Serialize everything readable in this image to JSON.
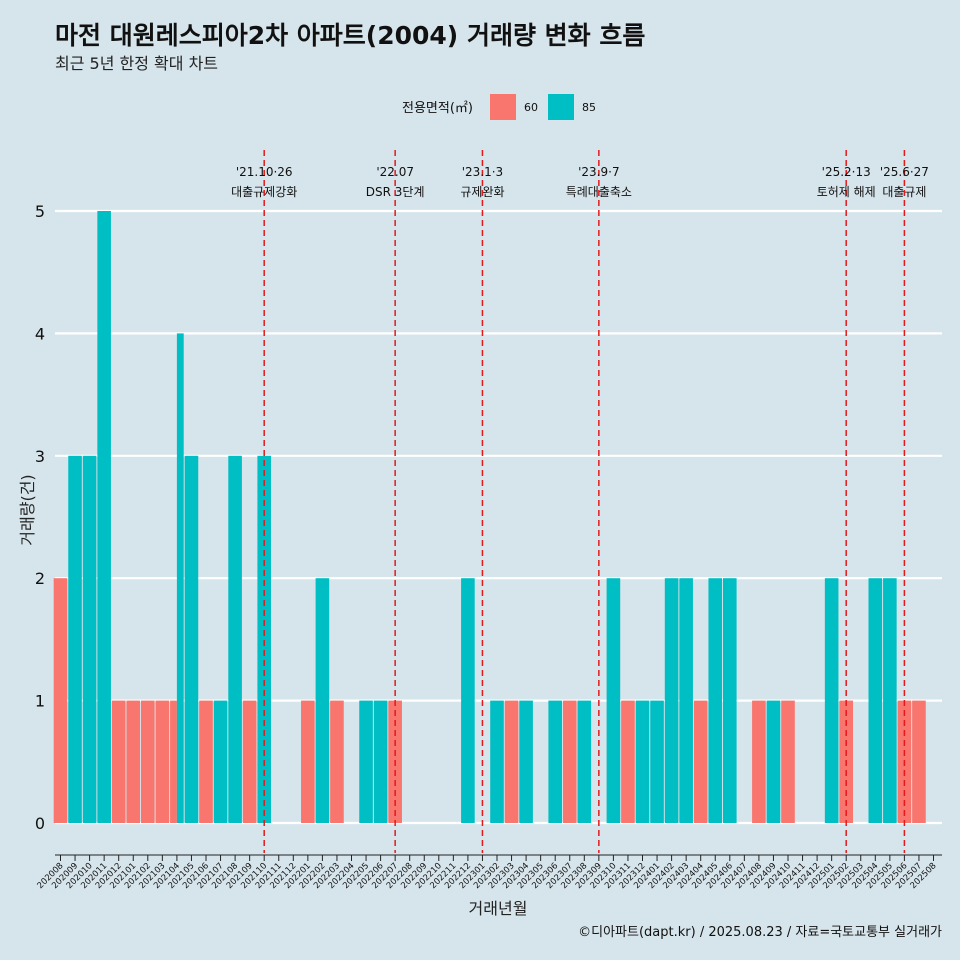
{
  "header": {
    "title": "마전 대원레스피아2차 아파트(2004) 거래량 변화 흐름",
    "subtitle": "최근 5년 한정 확대 차트"
  },
  "legend": {
    "title": "전용면적(㎡)",
    "items": [
      {
        "label": "60",
        "color": "#f8766d"
      },
      {
        "label": "85",
        "color": "#00bfc4"
      }
    ]
  },
  "caption": "©디아파트(dapt.kr) / 2025.08.23 / 자료=국토교통부 실거래가",
  "chart_data": {
    "type": "bar",
    "xlabel": "거래년월",
    "ylabel": "거래량(건)",
    "ylim": [
      0,
      5
    ],
    "yticks": [
      0,
      1,
      2,
      3,
      4,
      5
    ],
    "grid": true,
    "legend_position": "top",
    "categories": [
      "202008",
      "202009",
      "202010",
      "202011",
      "202012",
      "202101",
      "202102",
      "202103",
      "202104",
      "202105",
      "202106",
      "202107",
      "202108",
      "202109",
      "202110",
      "202111",
      "202112",
      "202201",
      "202202",
      "202203",
      "202204",
      "202205",
      "202206",
      "202207",
      "202208",
      "202209",
      "202210",
      "202211",
      "202212",
      "202301",
      "202302",
      "202303",
      "202304",
      "202305",
      "202306",
      "202307",
      "202308",
      "202309",
      "202310",
      "202311",
      "202312",
      "202401",
      "202402",
      "202403",
      "202404",
      "202405",
      "202406",
      "202407",
      "202408",
      "202409",
      "202410",
      "202411",
      "202412",
      "202501",
      "202502",
      "202503",
      "202504",
      "202505",
      "202506",
      "202507",
      "202508"
    ],
    "series": [
      {
        "name": "60",
        "color": "#f8766d",
        "values": [
          2,
          0,
          0,
          0,
          1,
          1,
          1,
          1,
          1,
          0,
          1,
          0,
          0,
          1,
          0,
          0,
          0,
          1,
          0,
          1,
          0,
          0,
          0,
          1,
          0,
          0,
          0,
          0,
          0,
          0,
          0,
          1,
          0,
          0,
          0,
          1,
          0,
          0,
          0,
          1,
          0,
          0,
          0,
          0,
          1,
          0,
          0,
          0,
          1,
          0,
          1,
          0,
          0,
          0,
          1,
          0,
          0,
          0,
          1,
          1,
          0
        ]
      },
      {
        "name": "85",
        "color": "#00bfc4",
        "values": [
          0,
          3,
          3,
          5,
          0,
          0,
          0,
          0,
          4,
          3,
          0,
          1,
          3,
          0,
          3,
          0,
          0,
          0,
          2,
          0,
          0,
          1,
          1,
          0,
          0,
          0,
          0,
          0,
          2,
          0,
          1,
          0,
          1,
          0,
          1,
          0,
          1,
          0,
          2,
          0,
          1,
          1,
          2,
          2,
          0,
          2,
          2,
          0,
          0,
          1,
          0,
          0,
          0,
          2,
          0,
          0,
          2,
          2,
          0,
          0,
          0
        ]
      }
    ],
    "events": [
      {
        "date": "'21.10·26",
        "label": "대출규제강화",
        "x": "202110"
      },
      {
        "date": "'22.07",
        "label": "DSR 3단계",
        "x": "202207"
      },
      {
        "date": "'23.1·3",
        "label": "규제완화",
        "x": "202301"
      },
      {
        "date": "'23.9·7",
        "label": "특례대출축소",
        "x": "202309"
      },
      {
        "date": "'25.2·13",
        "label": "토허제 해제",
        "x": "202502"
      },
      {
        "date": "'25.6·27",
        "label": "대출규제",
        "x": "202506"
      }
    ]
  }
}
